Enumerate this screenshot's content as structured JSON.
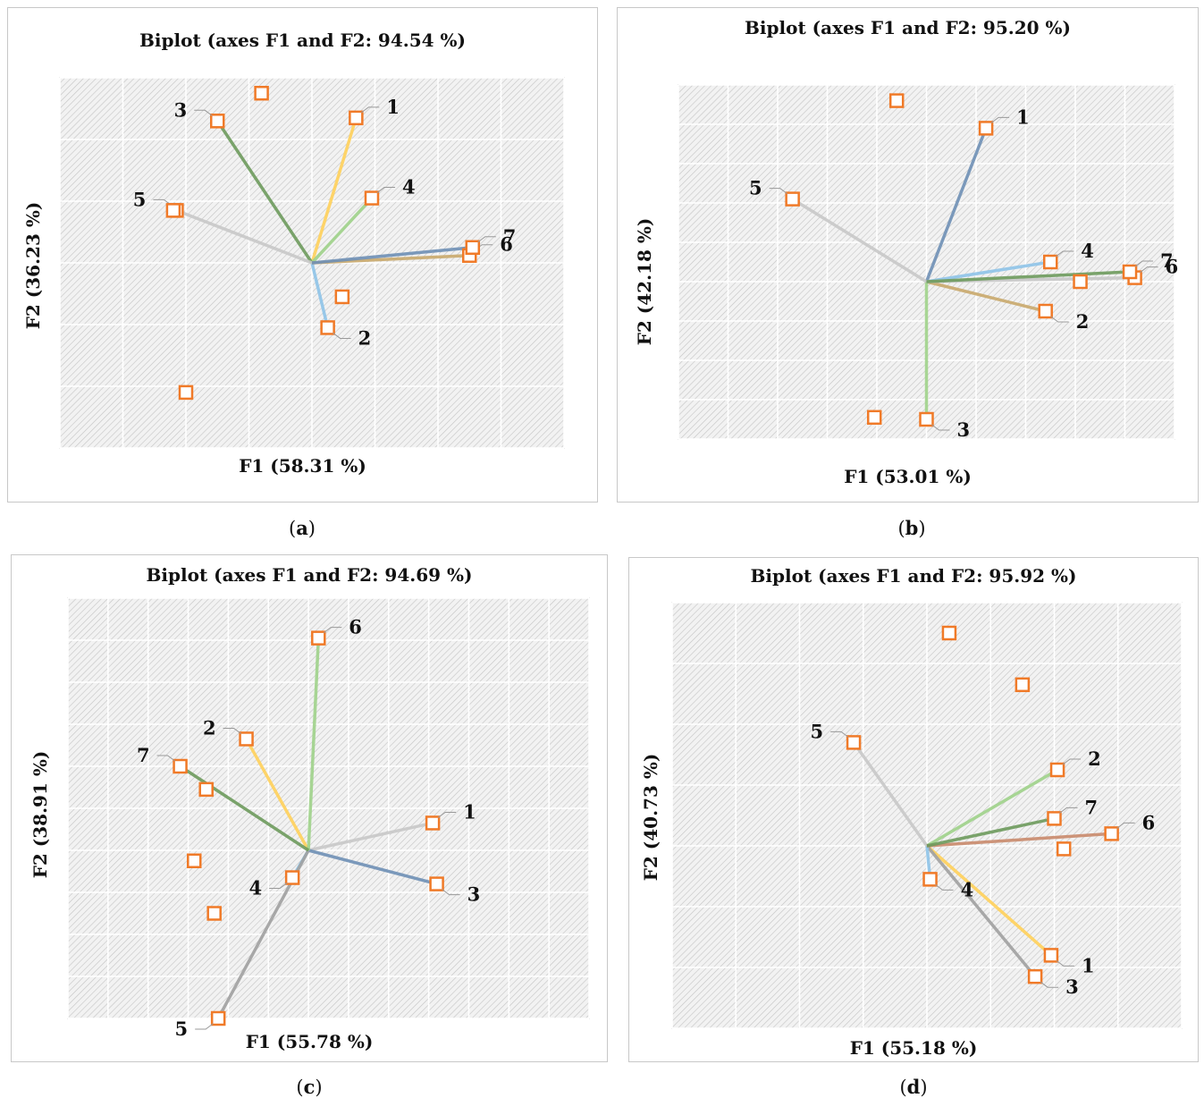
{
  "chart_data": [
    {
      "id": "a",
      "type": "scatter",
      "title": "Biplot (axes F1 and F2: 94.54 %)",
      "xlabel": "F1 (58.31 %)",
      "ylabel": "F2 (36.23 %)",
      "caption": "a",
      "xlim": [
        -4,
        4
      ],
      "ylim": [
        -3,
        3
      ],
      "grid": true,
      "vectors": [
        {
          "label": "1",
          "x": 0.7,
          "y": 2.35,
          "color": "#ffd05a"
        },
        {
          "label": "2",
          "x": 0.25,
          "y": -1.05,
          "color": "#8ec3e8"
        },
        {
          "label": "3",
          "x": -1.5,
          "y": 2.3,
          "color": "#6d9a5c"
        },
        {
          "label": "4",
          "x": 0.95,
          "y": 1.05,
          "color": "#9ed18a"
        },
        {
          "label": "5",
          "x": -2.15,
          "y": 0.85,
          "color": "#c8c8c8"
        },
        {
          "label": "6",
          "x": 2.5,
          "y": 0.12,
          "color": "#c9a96b"
        },
        {
          "label": "7",
          "x": 2.55,
          "y": 0.25,
          "color": "#6e8fb5"
        }
      ],
      "points": [
        {
          "x": -0.8,
          "y": 2.75
        },
        {
          "x": 0.48,
          "y": -0.55
        },
        {
          "x": -2.0,
          "y": -2.1
        },
        {
          "x": -2.2,
          "y": 0.85
        }
      ]
    },
    {
      "id": "b",
      "type": "scatter",
      "title": "Biplot (axes F1 and F2: 95.20 %)",
      "xlabel": "F1 (53.01 %)",
      "ylabel": "F2 (42.18 %)",
      "caption": "b",
      "xlim": [
        -5,
        5
      ],
      "ylim": [
        -4,
        5
      ],
      "grid": true,
      "vectors": [
        {
          "label": "1",
          "x": 1.2,
          "y": 3.9,
          "color": "#6e8fb5"
        },
        {
          "label": "2",
          "x": 2.4,
          "y": -0.75,
          "color": "#c9a96b"
        },
        {
          "label": "3",
          "x": 0.0,
          "y": -3.5,
          "color": "#9ed18a"
        },
        {
          "label": "4",
          "x": 2.5,
          "y": 0.5,
          "color": "#8ec3e8"
        },
        {
          "label": "5",
          "x": -2.7,
          "y": 2.1,
          "color": "#c8c8c8"
        },
        {
          "label": "6",
          "x": 4.2,
          "y": 0.1,
          "color": "#c8c8c8"
        },
        {
          "label": "7",
          "x": 4.1,
          "y": 0.25,
          "color": "#6d9a5c"
        }
      ],
      "points": [
        {
          "x": -0.6,
          "y": 4.6
        },
        {
          "x": 3.1,
          "y": 0.0
        },
        {
          "x": -1.05,
          "y": -3.45
        }
      ]
    },
    {
      "id": "c",
      "type": "scatter",
      "title": "Biplot (axes F1 and F2: 94.69 %)",
      "xlabel": "F1 (55.78 %)",
      "ylabel": "F2 (38.91 %)",
      "caption": "c",
      "xlim": [
        -6,
        7
      ],
      "ylim": [
        -4,
        6
      ],
      "grid": true,
      "vectors": [
        {
          "label": "1",
          "x": 3.1,
          "y": 0.65,
          "color": "#c8c8c8"
        },
        {
          "label": "2",
          "x": -1.55,
          "y": 2.65,
          "color": "#ffd05a"
        },
        {
          "label": "3",
          "x": 3.2,
          "y": -0.8,
          "color": "#6e8fb5"
        },
        {
          "label": "4",
          "x": -0.4,
          "y": -0.65,
          "color": "#8ec3e8"
        },
        {
          "label": "5",
          "x": -2.25,
          "y": -4.0,
          "color": "#a0a0a0"
        },
        {
          "label": "6",
          "x": 0.25,
          "y": 5.05,
          "color": "#9ed18a"
        },
        {
          "label": "7",
          "x": -3.2,
          "y": 2.0,
          "color": "#6d9a5c"
        }
      ],
      "points": [
        {
          "x": -2.55,
          "y": 1.45
        },
        {
          "x": -2.85,
          "y": -0.25
        },
        {
          "x": -2.35,
          "y": -1.5
        }
      ]
    },
    {
      "id": "d",
      "type": "scatter",
      "title": "Biplot (axes F1 and F2: 95.92 %)",
      "xlabel": "F1 (55.18 %)",
      "ylabel": "F2 (40.73 %)",
      "caption": "d",
      "xlim": [
        -4,
        4
      ],
      "ylim": [
        -3,
        4
      ],
      "grid": true,
      "vectors": [
        {
          "label": "1",
          "x": 1.95,
          "y": -1.8,
          "color": "#ffd05a"
        },
        {
          "label": "2",
          "x": 2.05,
          "y": 1.25,
          "color": "#9ed18a"
        },
        {
          "label": "3",
          "x": 1.7,
          "y": -2.15,
          "color": "#a0a0a0"
        },
        {
          "label": "4",
          "x": 0.05,
          "y": -0.55,
          "color": "#8ec3e8"
        },
        {
          "label": "5",
          "x": -1.15,
          "y": 1.7,
          "color": "#c8c8c8"
        },
        {
          "label": "6",
          "x": 2.9,
          "y": 0.2,
          "color": "#c98a6b"
        },
        {
          "label": "7",
          "x": 2.0,
          "y": 0.45,
          "color": "#6d9a5c"
        }
      ],
      "points": [
        {
          "x": 0.35,
          "y": 3.5
        },
        {
          "x": 1.5,
          "y": 2.65
        },
        {
          "x": 2.15,
          "y": -0.05
        }
      ]
    }
  ]
}
